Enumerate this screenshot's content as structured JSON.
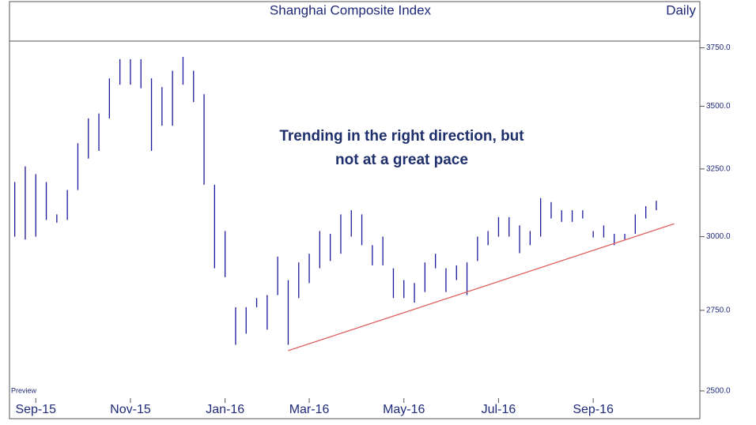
{
  "chart_data": {
    "type": "hl_bar",
    "title": "Shanghai Composite Index",
    "subtitle": "Daily",
    "watermark": "Preview",
    "annotation": [
      "Trending in the right direction, but",
      "not at a great pace"
    ],
    "color": "#1a1a9c",
    "log_scale": true,
    "categories": [
      null,
      null,
      "Sep-15",
      null,
      null,
      null,
      null,
      null,
      null,
      null,
      null,
      "Nov-15",
      null,
      null,
      null,
      null,
      null,
      null,
      null,
      null,
      "Jan-16",
      null,
      null,
      null,
      null,
      null,
      null,
      null,
      "Mar-16",
      null,
      null,
      null,
      null,
      null,
      null,
      null,
      null,
      "May-16",
      null,
      null,
      null,
      null,
      null,
      null,
      null,
      null,
      "Jul-16",
      null,
      null,
      null,
      null,
      null,
      null,
      null,
      null,
      "Sep-16",
      null,
      null,
      null,
      null,
      null,
      null
    ],
    "high": [
      3200,
      3260,
      3230,
      3200,
      3080,
      3170,
      3350,
      3450,
      3470,
      3617,
      3700,
      3700,
      3700,
      3617,
      3580,
      3650,
      3710,
      3650,
      3550,
      3190,
      3020,
      2760,
      2760,
      2790,
      2800,
      2930,
      2850,
      2910,
      2940,
      3020,
      3010,
      3080,
      3095,
      3080,
      2970,
      3000,
      2890,
      2850,
      2840,
      2910,
      2940,
      2890,
      2900,
      2910,
      3000,
      3020,
      3070,
      3070,
      3040,
      3020,
      3140,
      3125,
      3095,
      3095,
      3095,
      3020,
      3040,
      3010,
      3010,
      3080,
      3110,
      3130
    ],
    "low": [
      3000,
      2990,
      3000,
      3060,
      3050,
      3060,
      3170,
      3290,
      3320,
      3450,
      3590,
      3590,
      3575,
      3320,
      3420,
      3420,
      3590,
      3517,
      3190,
      2890,
      2860,
      2640,
      2675,
      2760,
      2688,
      2800,
      2640,
      2790,
      2840,
      2890,
      2915,
      2940,
      3000,
      2970,
      2900,
      2900,
      2790,
      2790,
      2775,
      2810,
      2890,
      2810,
      2850,
      2800,
      2915,
      2970,
      3000,
      3000,
      2942,
      2970,
      3000,
      3065,
      3053,
      3053,
      3065,
      2997,
      2997,
      2970,
      2990,
      3010,
      3065,
      3095
    ],
    "trend_line": {
      "color": "#e06060",
      "x": [
        26,
        62.7
      ],
      "values": [
        2622,
        3046
      ]
    },
    "ylim": [
      2465,
      3780
    ],
    "yticks": [
      {
        "value": 2500,
        "label": "2500.0"
      },
      {
        "value": 2750,
        "label": "2750.0"
      },
      {
        "value": 3000,
        "label": "3000.0"
      },
      {
        "value": 3250,
        "label": "3250.0"
      },
      {
        "value": 3500,
        "label": "3500.0"
      },
      {
        "value": 3750,
        "label": "3750.0"
      }
    ]
  }
}
